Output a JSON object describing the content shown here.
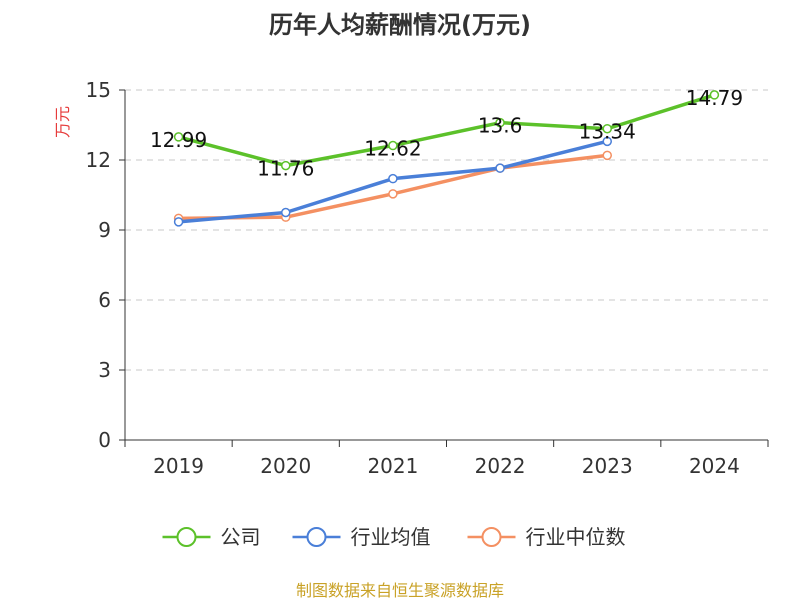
{
  "chart_data": {
    "type": "line",
    "title": "历年人均薪酬情况(万元)",
    "ylabel": "万元",
    "xlabel": "",
    "categories": [
      "2019",
      "2020",
      "2021",
      "2022",
      "2023",
      "2024"
    ],
    "ylim": [
      0,
      15
    ],
    "yticks": [
      0,
      3,
      6,
      9,
      12,
      15
    ],
    "grid": true,
    "legend_position": "bottom",
    "series": [
      {
        "name": "公司",
        "color": "#5cc12a",
        "values": [
          12.99,
          11.76,
          12.62,
          13.6,
          13.34,
          14.79
        ],
        "labels": [
          "12.99",
          "11.76",
          "12.62",
          "13.6",
          "13.34",
          "14.79"
        ]
      },
      {
        "name": "行业均值",
        "color": "#4a7fd8",
        "values": [
          9.35,
          9.75,
          11.2,
          11.65,
          12.8,
          null
        ]
      },
      {
        "name": "行业中位数",
        "color": "#f49062",
        "values": [
          9.5,
          9.55,
          10.55,
          11.65,
          12.2,
          null
        ]
      }
    ],
    "axis_color": "#333333",
    "ylabel_color": "#e63b3b"
  },
  "footer": {
    "source": "制图数据来自恒生聚源数据库",
    "source_color": "#c9a227"
  }
}
